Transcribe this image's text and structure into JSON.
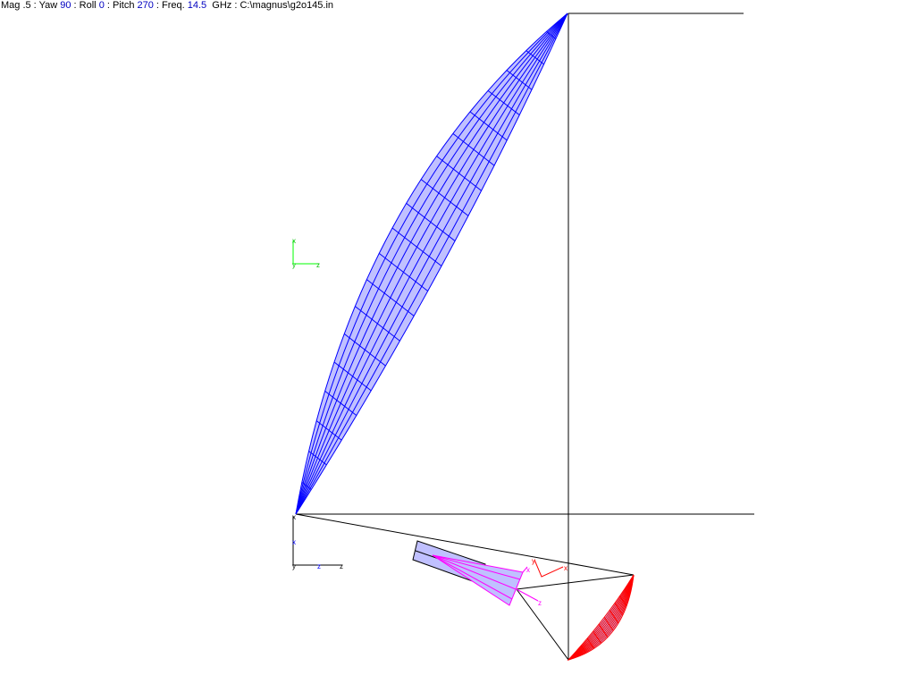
{
  "header": {
    "mag_label": "Mag .5 : Yaw ",
    "yaw": "90",
    "roll_label": " : Roll ",
    "roll": "0",
    "pitch_label": " : Pitch ",
    "pitch": "270",
    "freq_label": " : Freq. ",
    "freq": "14.5",
    "path_label": "  GHz : C:\\magnus\\g2o145.in"
  },
  "axes_labels": {
    "green_x": "x",
    "green_y": "y",
    "green_z": "z",
    "origin_x": "x",
    "blue_x": "x",
    "blue_z": "z",
    "black_z": "z",
    "black_y": "y",
    "feed_x": "x",
    "feed_z": "z",
    "red_y": "y",
    "red_x": "x"
  },
  "colors": {
    "main_reflector": "#0000ff",
    "main_fill": "#c0c0ff",
    "sub_reflector": "#ff0000",
    "feed": "#ff00ff",
    "frame": "#000000",
    "axis_green": "#00ff00"
  }
}
